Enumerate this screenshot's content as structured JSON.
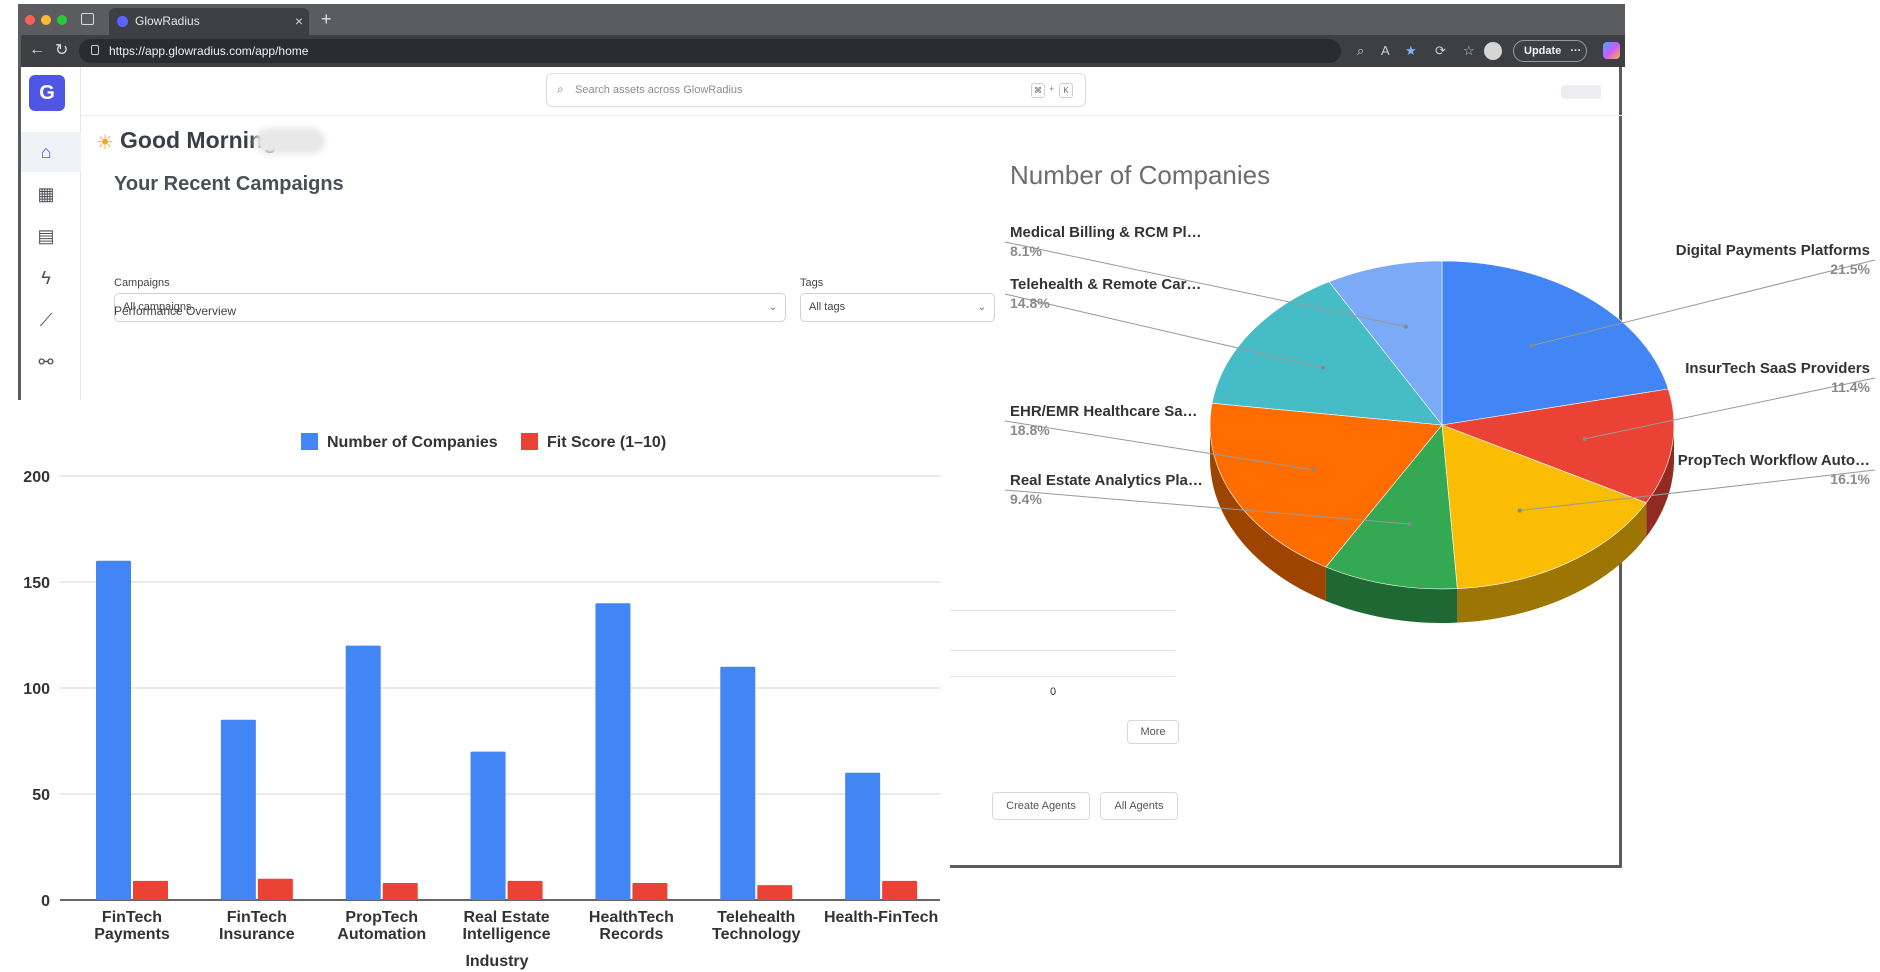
{
  "browser": {
    "tab_title": "GlowRadius",
    "url": "https://app.glowradius.com/app/home",
    "update_label": "Update",
    "menu_label": "···"
  },
  "app": {
    "logo_icon": "glowradius-logo-icon",
    "search_placeholder": "Search assets across GlowRadius",
    "shortcut_key1": "⌘",
    "shortcut_plus": "+",
    "shortcut_key2": "K",
    "greeting": "Good Morning",
    "recent_campaigns_title": "Your Recent Campaigns",
    "campaigns_label": "Campaigns",
    "campaigns_value": "All campaigns",
    "tags_label": "Tags",
    "tags_value": "All tags",
    "performance_overview": "Performance Overview",
    "table_value": "0",
    "more_label": "More",
    "create_agents_label": "Create Agents",
    "all_agents_label": "All Agents"
  },
  "sidebar": {
    "items": [
      {
        "icon": "home-icon"
      },
      {
        "icon": "table-icon"
      },
      {
        "icon": "document-icon"
      },
      {
        "icon": "bolt-icon"
      },
      {
        "icon": "trend-icon"
      },
      {
        "icon": "integration-icon"
      }
    ]
  },
  "colors": {
    "brand": "#4f56e6",
    "blue": "#4285f4",
    "red": "#ea4335",
    "yellow": "#fbbc04",
    "green": "#34a853",
    "orange": "#ff6d01",
    "teal": "#46bdc6",
    "light_blue": "#7baaf7"
  },
  "chart_data": [
    {
      "type": "bar",
      "title": "",
      "xlabel": "Industry",
      "ylabel": "",
      "categories": [
        "FinTech Payments",
        "FinTech Insurance",
        "PropTech Automation",
        "Real Estate Intelligence",
        "HealthTech Records",
        "Telehealth Technology",
        "Health-FinTech"
      ],
      "category_lines": [
        [
          "FinTech",
          "Payments"
        ],
        [
          "FinTech",
          "Insurance"
        ],
        [
          "PropTech",
          "Automation"
        ],
        [
          "Real Estate",
          "Intelligence"
        ],
        [
          "HealthTech",
          "Records"
        ],
        [
          "Telehealth",
          "Technology"
        ],
        [
          "Health-FinTech",
          ""
        ]
      ],
      "series": [
        {
          "name": "Number of Companies",
          "values": [
            160,
            85,
            120,
            70,
            140,
            110,
            60
          ],
          "color": "#4285f4"
        },
        {
          "name": "Fit Score (1–10)",
          "values": [
            9,
            10,
            8,
            9,
            8,
            7,
            9
          ],
          "color": "#ea4335"
        }
      ],
      "ylim": [
        0,
        200
      ],
      "yticks": [
        0,
        50,
        100,
        150,
        200
      ],
      "grid": true,
      "legend": "top"
    },
    {
      "type": "pie",
      "title": "Number of Companies",
      "slices": [
        {
          "label": "Digital Payments Platforms",
          "pct": "21.5%",
          "value": 21.5,
          "color": "#4285f4"
        },
        {
          "label": "InsurTech SaaS Providers",
          "pct": "11.4%",
          "value": 11.4,
          "color": "#ea4335"
        },
        {
          "label": "PropTech Workflow Auto…",
          "pct": "16.1%",
          "value": 16.1,
          "color": "#fbbc04"
        },
        {
          "label": "Real Estate Analytics Pla…",
          "pct": "9.4%",
          "value": 9.4,
          "color": "#34a853"
        },
        {
          "label": "EHR/EMR Healthcare Sa…",
          "pct": "18.8%",
          "value": 18.8,
          "color": "#ff6d01"
        },
        {
          "label": "Telehealth & Remote Car…",
          "pct": "14.8%",
          "value": 14.8,
          "color": "#46bdc6"
        },
        {
          "label": "Medical Billing & RCM Pl…",
          "pct": "8.1%",
          "value": 8.1,
          "color": "#7baaf7"
        }
      ],
      "style": "3d",
      "legend": "labels"
    }
  ]
}
